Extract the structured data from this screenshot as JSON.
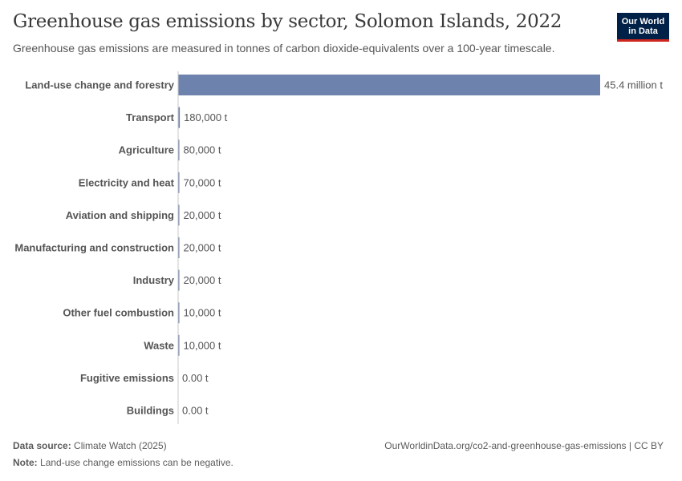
{
  "header": {
    "title": "Greenhouse gas emissions by sector, Solomon Islands, 2022",
    "subtitle": "Greenhouse gas emissions are measured in tonnes of carbon dioxide-equivalents over a 100-year timescale."
  },
  "logo": {
    "line1": "Our World",
    "line2": "in Data"
  },
  "footer": {
    "source_label": "Data source:",
    "source_value": "Climate Watch (2025)",
    "note_label": "Note:",
    "note_value": "Land-use change emissions can be negative.",
    "url": "OurWorldinData.org/co2-and-greenhouse-gas-emissions | CC BY"
  },
  "colors": {
    "bar": "#6d83ad",
    "axis": "#c9c9c9",
    "logo_bg": "#002147",
    "logo_accent": "#ce261e"
  },
  "chart_data": {
    "type": "bar",
    "orientation": "horizontal",
    "title": "Greenhouse gas emissions by sector, Solomon Islands, 2022",
    "unit": "tonnes CO2-equivalents",
    "categories": [
      "Land-use change and forestry",
      "Transport",
      "Agriculture",
      "Electricity and heat",
      "Aviation and shipping",
      "Manufacturing and construction",
      "Industry",
      "Other fuel combustion",
      "Waste",
      "Fugitive emissions",
      "Buildings"
    ],
    "values": [
      45400000,
      180000,
      80000,
      70000,
      20000,
      20000,
      20000,
      10000,
      10000,
      0,
      0
    ],
    "value_labels": [
      "45.4 million t",
      "180,000 t",
      "80,000 t",
      "70,000 t",
      "20,000 t",
      "20,000 t",
      "20,000 t",
      "10,000 t",
      "10,000 t",
      "0.00 t",
      "0.00 t"
    ],
    "xlim": [
      0,
      45400000
    ]
  }
}
